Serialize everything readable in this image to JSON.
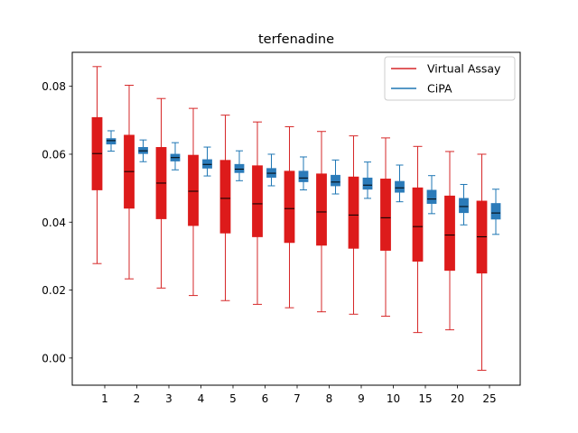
{
  "chart_data": {
    "type": "box",
    "title": "terfenadine",
    "xlabel": "",
    "ylabel": "",
    "categories": [
      "1",
      "2",
      "3",
      "4",
      "5",
      "6",
      "7",
      "8",
      "9",
      "10",
      "15",
      "20",
      "25"
    ],
    "ylim": [
      -0.008,
      0.09
    ],
    "yticks": [
      0.0,
      0.02,
      0.04,
      0.06,
      0.08
    ],
    "ytick_labels": [
      "0.00",
      "0.02",
      "0.04",
      "0.06",
      "0.08"
    ],
    "grid": false,
    "legend_position": "top-right",
    "series": [
      {
        "name": "Virtual Assay",
        "color": "#d62728",
        "box_color": "#dd1b1b",
        "boxes": [
          {
            "min": 0.0278,
            "q1": 0.0495,
            "median": 0.0602,
            "q3": 0.0708,
            "max": 0.0858
          },
          {
            "min": 0.0233,
            "q1": 0.0441,
            "median": 0.0549,
            "q3": 0.0656,
            "max": 0.0803
          },
          {
            "min": 0.0206,
            "q1": 0.041,
            "median": 0.0515,
            "q3": 0.062,
            "max": 0.0764
          },
          {
            "min": 0.0184,
            "q1": 0.039,
            "median": 0.0491,
            "q3": 0.0597,
            "max": 0.0735
          },
          {
            "min": 0.0169,
            "q1": 0.0368,
            "median": 0.047,
            "q3": 0.0582,
            "max": 0.0715
          },
          {
            "min": 0.0158,
            "q1": 0.0357,
            "median": 0.0454,
            "q3": 0.0566,
            "max": 0.0695
          },
          {
            "min": 0.0148,
            "q1": 0.034,
            "median": 0.044,
            "q3": 0.055,
            "max": 0.0681
          },
          {
            "min": 0.0136,
            "q1": 0.0332,
            "median": 0.043,
            "q3": 0.0542,
            "max": 0.0667
          },
          {
            "min": 0.0129,
            "q1": 0.0323,
            "median": 0.0421,
            "q3": 0.0533,
            "max": 0.0654
          },
          {
            "min": 0.0123,
            "q1": 0.0317,
            "median": 0.0413,
            "q3": 0.0527,
            "max": 0.0648
          },
          {
            "min": 0.0075,
            "q1": 0.0285,
            "median": 0.0387,
            "q3": 0.0501,
            "max": 0.0623
          },
          {
            "min": 0.0083,
            "q1": 0.0258,
            "median": 0.0362,
            "q3": 0.0477,
            "max": 0.0608
          },
          {
            "min": -0.0036,
            "q1": 0.025,
            "median": 0.0357,
            "q3": 0.0462,
            "max": 0.06
          }
        ]
      },
      {
        "name": "CiPA",
        "color": "#1f77b4",
        "box_color": "#2b7bb9",
        "boxes": [
          {
            "min": 0.0609,
            "q1": 0.063,
            "median": 0.064,
            "q3": 0.0646,
            "max": 0.0669
          },
          {
            "min": 0.0578,
            "q1": 0.0602,
            "median": 0.061,
            "q3": 0.062,
            "max": 0.0642
          },
          {
            "min": 0.0554,
            "q1": 0.058,
            "median": 0.059,
            "q3": 0.06,
            "max": 0.0634
          },
          {
            "min": 0.0536,
            "q1": 0.0559,
            "median": 0.057,
            "q3": 0.0584,
            "max": 0.0621
          },
          {
            "min": 0.0522,
            "q1": 0.0546,
            "median": 0.0556,
            "q3": 0.057,
            "max": 0.061
          },
          {
            "min": 0.0507,
            "q1": 0.0532,
            "median": 0.0544,
            "q3": 0.0558,
            "max": 0.06
          },
          {
            "min": 0.0495,
            "q1": 0.0519,
            "median": 0.053,
            "q3": 0.055,
            "max": 0.0592
          },
          {
            "min": 0.0483,
            "q1": 0.0507,
            "median": 0.0518,
            "q3": 0.0538,
            "max": 0.0583
          },
          {
            "min": 0.047,
            "q1": 0.0497,
            "median": 0.0509,
            "q3": 0.053,
            "max": 0.0577
          },
          {
            "min": 0.046,
            "q1": 0.0488,
            "median": 0.0501,
            "q3": 0.052,
            "max": 0.0568
          },
          {
            "min": 0.0425,
            "q1": 0.0455,
            "median": 0.0468,
            "q3": 0.0494,
            "max": 0.0537
          },
          {
            "min": 0.0392,
            "q1": 0.0428,
            "median": 0.0446,
            "q3": 0.047,
            "max": 0.0511
          },
          {
            "min": 0.0364,
            "q1": 0.0409,
            "median": 0.0427,
            "q3": 0.0455,
            "max": 0.0497
          }
        ]
      }
    ]
  }
}
